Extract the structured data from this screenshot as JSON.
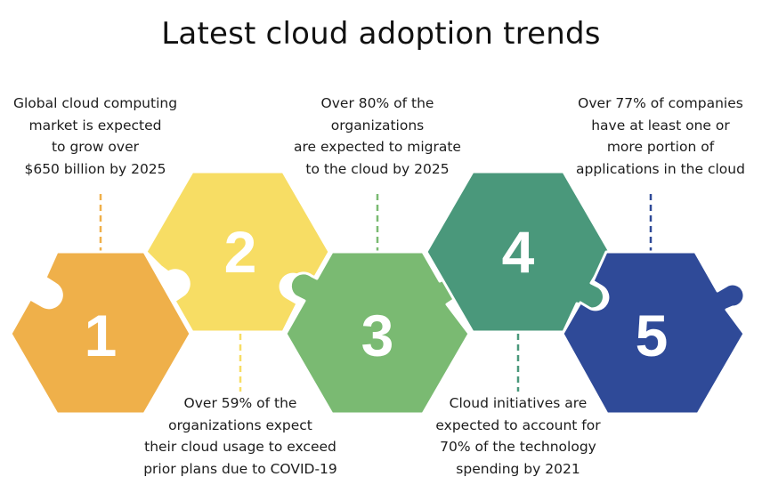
{
  "title": "Latest cloud adoption trends",
  "colors": {
    "step1": "#efb04a",
    "step2": "#f7dd64",
    "step3": "#7aba72",
    "step4": "#4a987b",
    "step5": "#2f4a98"
  },
  "steps": [
    {
      "number": "1",
      "lines": [
        "Global cloud computing",
        "market is expected",
        "to grow over",
        "$650 billion by 2025"
      ]
    },
    {
      "number": "2",
      "lines": [
        "Over 59% of the",
        "organizations expect",
        "their cloud usage to exceed",
        "prior plans due to COVID-19"
      ]
    },
    {
      "number": "3",
      "lines": [
        "Over 80% of the",
        "organizations",
        "are expected to migrate",
        "to the cloud by 2025"
      ]
    },
    {
      "number": "4",
      "lines": [
        "Cloud initiatives are",
        "expected to account for",
        "70% of the technology",
        "spending by 2021"
      ]
    },
    {
      "number": "5",
      "lines": [
        "Over 77% of companies",
        "have at least one or",
        "more portion of",
        "applications in the cloud"
      ]
    }
  ]
}
